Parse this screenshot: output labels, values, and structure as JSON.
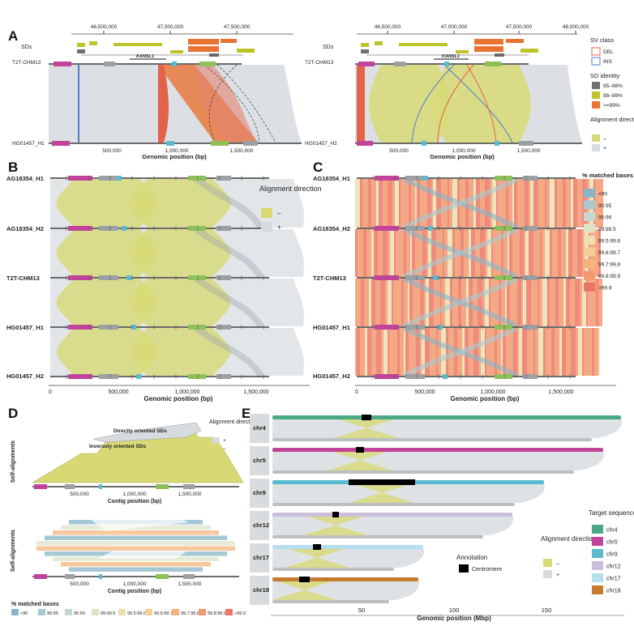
{
  "colors": {
    "minus": "#d8d975",
    "plus": "#d6dbdf",
    "sd_95_98": "#707070",
    "sd_98_99": "#bcc42a",
    "sd_99": "#ea7332",
    "del": "#e3624a",
    "ins": "#4f7fc4",
    "track": "#3a3a3a",
    "centromere": "#000000"
  },
  "panels": {
    "A": "A",
    "B": "B",
    "C": "C",
    "D": "D",
    "E": "E"
  },
  "panelA": {
    "left": {
      "top_ticks": [
        "46,500,000",
        "47,000,000",
        "47,500,000"
      ],
      "bottom_ticks": [
        "500,000",
        "1,000,000",
        "1,500,000"
      ],
      "sds_label": "SDs",
      "gene": "KANSL1",
      "top_genome": "T2T-CHM13",
      "bottom_genome": "HG01457_H1",
      "xlabel": "Genomic position (bp)"
    },
    "right": {
      "top_ticks": [
        "46,500,000",
        "47,000,000",
        "47,500,000",
        "48,000,000"
      ],
      "bottom_ticks": [
        "500,000",
        "1,000,000",
        "1,500,000"
      ],
      "sds_label": "SDs",
      "gene": "KANSL1",
      "top_genome": "T2T-CHM13",
      "bottom_genome": "HG01457_H2",
      "xlabel": "Genomic position (bp)"
    },
    "legend": {
      "sv_title": "SV class",
      "sv_items": [
        "DEL",
        "INS"
      ],
      "sd_title": "SD identity",
      "sd_items": [
        "95–98%",
        "98–99%",
        ">=99%"
      ],
      "dir_title": "Alignment direction",
      "dir_items": [
        "–",
        "+"
      ]
    }
  },
  "panelB": {
    "genomes": [
      "AG18354_H1",
      "AG18354_H2",
      "T2T-CHM13",
      "HG01457_H1",
      "HG01457_H2"
    ],
    "ticks": [
      "0",
      "500,000",
      "1,000,000",
      "1,500,000"
    ],
    "xlabel": "Genomic position (bp)",
    "legend_title": "Alignment direction",
    "legend_items": [
      "–",
      "+"
    ]
  },
  "panelC": {
    "genomes": [
      "AG18354_H1",
      "AG18354_H2",
      "T2T-CHM13",
      "HG01457_H1",
      "HG01457_H2"
    ],
    "ticks": [
      "0",
      "500,000",
      "1,000,000",
      "1,500,000"
    ],
    "xlabel": "Genomic position (bp)",
    "legend_title": "% matched bases",
    "legend_items": [
      {
        "label": "<90",
        "color": "#88b6c8"
      },
      {
        "label": "90:95",
        "color": "#a6c9d0"
      },
      {
        "label": "95:99",
        "color": "#c3d8d0"
      },
      {
        "label": "99:99.5",
        "color": "#dde3c8"
      },
      {
        "label": "99.5:99.6",
        "color": "#ece0b0"
      },
      {
        "label": "99.6:99.7",
        "color": "#f2cf94"
      },
      {
        "label": "99.7:99.8",
        "color": "#f4b57c"
      },
      {
        "label": "99.8:99.9",
        "color": "#f29a6e"
      },
      {
        "label": ">99.9",
        "color": "#ec7666"
      }
    ]
  },
  "panelD": {
    "ylabel": "Self-alignments",
    "ticks": [
      "500,000",
      "1,000,000",
      "1,500,000"
    ],
    "xlabel": "Contig position (bp)",
    "legend_title": "Alignment direction",
    "legend_items": [
      "+",
      "–"
    ],
    "ann_direct": "Directly oriented SDs",
    "ann_inverse": "Inversely oriented SDs",
    "bottom_legend_title": "% matched bases",
    "bottom_legend_items": [
      "<90",
      "90:95",
      "95:99",
      "99:99.5",
      "99.5:99.6",
      "99.6:99.7",
      "99.7:99.8",
      "99.8:99.9",
      ">99.9"
    ]
  },
  "panelE": {
    "chromosomes": [
      {
        "name": "chr4",
        "color": "#4aaa86"
      },
      {
        "name": "chr5",
        "color": "#c2449a"
      },
      {
        "name": "chr9",
        "color": "#5abbd0"
      },
      {
        "name": "chr12",
        "color": "#cbbfdc"
      },
      {
        "name": "chr17",
        "color": "#b6ddf0"
      },
      {
        "name": "chr18",
        "color": "#c47d30"
      }
    ],
    "ticks": [
      "50",
      "100",
      "150"
    ],
    "xlabel": "Genomic position (Mbp)",
    "target_title": "Target sequence",
    "dir_title": "Alignment direction",
    "dir_items": [
      "–",
      "+"
    ],
    "ann_title": "Annotation",
    "ann_item": "Centromere"
  }
}
